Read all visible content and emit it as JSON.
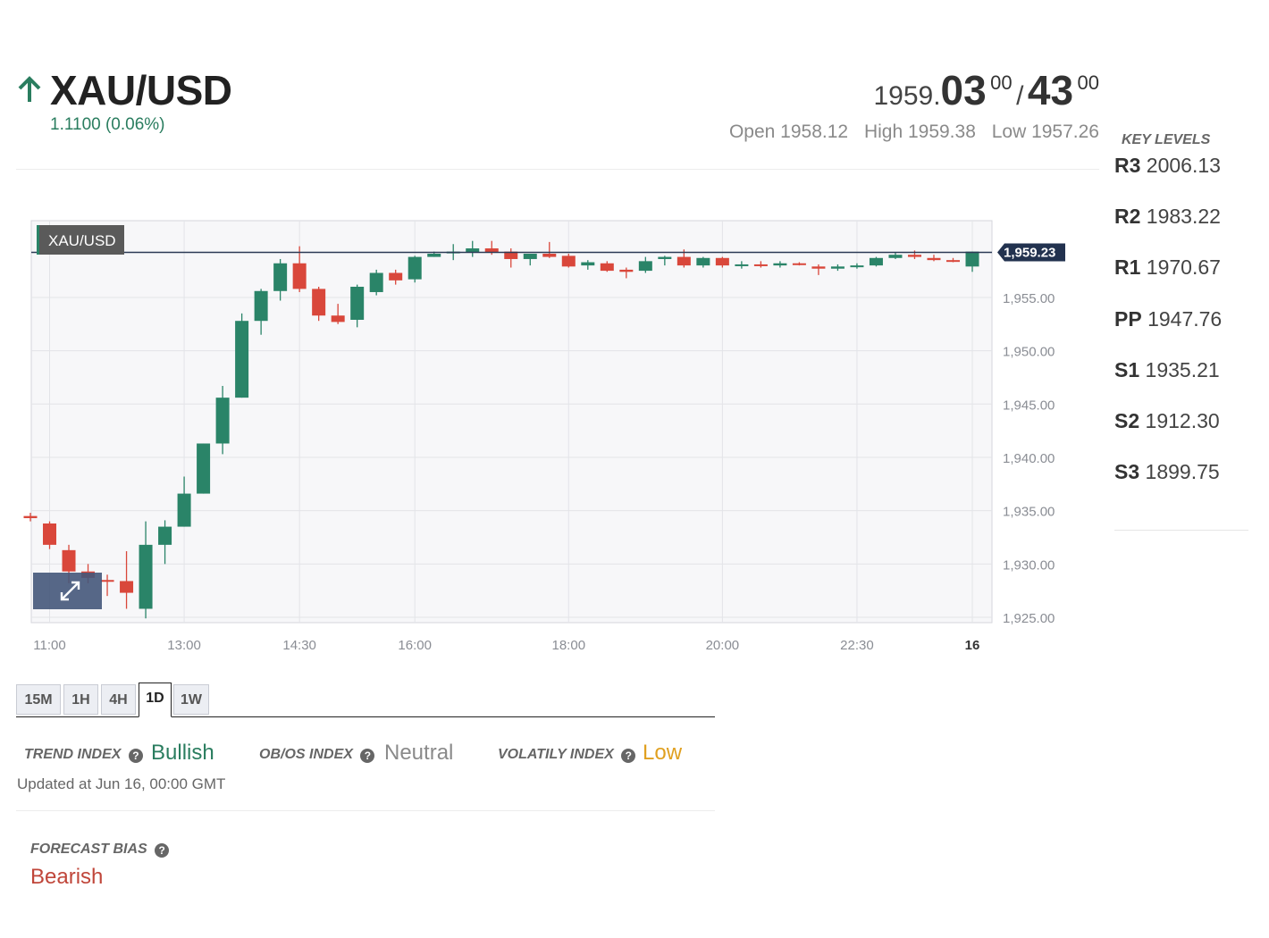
{
  "header": {
    "symbol": "XAU/USD",
    "change": "1.1100 (0.06%)",
    "quote": {
      "bid_main": "1959.",
      "bid_bold": "03",
      "bid_sup": "00",
      "separator": "/",
      "ask_bold": "43",
      "ask_sup": "00"
    },
    "open": "Open 1958.12",
    "high": "High 1959.38",
    "low": "Low 1957.26"
  },
  "key_levels": {
    "title": "KEY LEVELS",
    "items": [
      {
        "name": "R3",
        "value": "2006.13"
      },
      {
        "name": "R2",
        "value": "1983.22"
      },
      {
        "name": "R1",
        "value": "1970.67"
      },
      {
        "name": "PP",
        "value": "1947.76"
      },
      {
        "name": "S1",
        "value": "1935.21"
      },
      {
        "name": "S2",
        "value": "1912.30"
      },
      {
        "name": "S3",
        "value": "1899.75"
      }
    ]
  },
  "chart_data": {
    "type": "candlestick",
    "legend_label": "XAU/USD",
    "last_price_label": "1,959.23",
    "last_price": 1959.23,
    "ylim": [
      1924.5,
      1962.2
    ],
    "y_ticks": [
      1925,
      1930,
      1935,
      1940,
      1945,
      1950,
      1955
    ],
    "y_tick_labels": [
      "1,925.00",
      "1,930.00",
      "1,935.00",
      "1,940.00",
      "1,945.00",
      "1,950.00",
      "1,955.00"
    ],
    "x_tick_labels": [
      "11:00",
      "13:00",
      "14:30",
      "16:00",
      "18:00",
      "20:00",
      "22:30",
      "16"
    ],
    "x_tick_index": [
      1,
      8,
      14,
      20,
      28,
      36,
      43,
      49
    ],
    "candles": [
      {
        "o": 1934.5,
        "h": 1934.8,
        "l": 1934.0,
        "c": 1934.3
      },
      {
        "o": 1933.8,
        "h": 1934.0,
        "l": 1931.4,
        "c": 1931.8
      },
      {
        "o": 1931.3,
        "h": 1931.8,
        "l": 1928.2,
        "c": 1929.3
      },
      {
        "o": 1929.3,
        "h": 1930.0,
        "l": 1928.2,
        "c": 1928.7
      },
      {
        "o": 1928.5,
        "h": 1929.0,
        "l": 1927.0,
        "c": 1928.4
      },
      {
        "o": 1928.4,
        "h": 1931.2,
        "l": 1925.8,
        "c": 1927.3
      },
      {
        "o": 1925.8,
        "h": 1934.0,
        "l": 1924.9,
        "c": 1931.8
      },
      {
        "o": 1931.8,
        "h": 1934.1,
        "l": 1930.0,
        "c": 1933.5
      },
      {
        "o": 1933.5,
        "h": 1938.2,
        "l": 1933.5,
        "c": 1936.6
      },
      {
        "o": 1936.6,
        "h": 1941.3,
        "l": 1936.6,
        "c": 1941.3
      },
      {
        "o": 1941.3,
        "h": 1946.7,
        "l": 1940.3,
        "c": 1945.6
      },
      {
        "o": 1945.6,
        "h": 1953.5,
        "l": 1945.6,
        "c": 1952.8
      },
      {
        "o": 1952.8,
        "h": 1955.8,
        "l": 1951.5,
        "c": 1955.6
      },
      {
        "o": 1955.6,
        "h": 1958.6,
        "l": 1954.7,
        "c": 1958.2
      },
      {
        "o": 1958.2,
        "h": 1959.8,
        "l": 1955.5,
        "c": 1955.8
      },
      {
        "o": 1955.8,
        "h": 1956.0,
        "l": 1952.8,
        "c": 1953.3
      },
      {
        "o": 1953.3,
        "h": 1954.4,
        "l": 1952.5,
        "c": 1952.7
      },
      {
        "o": 1952.9,
        "h": 1956.2,
        "l": 1952.2,
        "c": 1956.0
      },
      {
        "o": 1955.5,
        "h": 1957.6,
        "l": 1955.2,
        "c": 1957.3
      },
      {
        "o": 1957.3,
        "h": 1957.6,
        "l": 1956.2,
        "c": 1956.6
      },
      {
        "o": 1956.7,
        "h": 1958.9,
        "l": 1956.4,
        "c": 1958.8
      },
      {
        "o": 1958.8,
        "h": 1959.3,
        "l": 1958.8,
        "c": 1959.1
      },
      {
        "o": 1959.3,
        "h": 1960.0,
        "l": 1958.5,
        "c": 1959.3
      },
      {
        "o": 1959.2,
        "h": 1960.3,
        "l": 1958.8,
        "c": 1959.6
      },
      {
        "o": 1959.6,
        "h": 1960.3,
        "l": 1959.0,
        "c": 1959.2
      },
      {
        "o": 1959.3,
        "h": 1959.6,
        "l": 1957.8,
        "c": 1958.6
      },
      {
        "o": 1958.6,
        "h": 1959.1,
        "l": 1958.0,
        "c": 1959.1
      },
      {
        "o": 1959.1,
        "h": 1960.2,
        "l": 1958.7,
        "c": 1958.8
      },
      {
        "o": 1958.9,
        "h": 1959.1,
        "l": 1957.8,
        "c": 1957.9
      },
      {
        "o": 1958.0,
        "h": 1958.5,
        "l": 1957.6,
        "c": 1958.3
      },
      {
        "o": 1958.2,
        "h": 1958.4,
        "l": 1957.4,
        "c": 1957.5
      },
      {
        "o": 1957.6,
        "h": 1957.8,
        "l": 1956.8,
        "c": 1957.4
      },
      {
        "o": 1957.5,
        "h": 1958.8,
        "l": 1957.3,
        "c": 1958.4
      },
      {
        "o": 1958.6,
        "h": 1958.9,
        "l": 1958.0,
        "c": 1958.8
      },
      {
        "o": 1958.8,
        "h": 1959.5,
        "l": 1957.8,
        "c": 1958.0
      },
      {
        "o": 1958.0,
        "h": 1958.8,
        "l": 1957.8,
        "c": 1958.7
      },
      {
        "o": 1958.7,
        "h": 1958.8,
        "l": 1957.8,
        "c": 1958.0
      },
      {
        "o": 1958.0,
        "h": 1958.4,
        "l": 1957.7,
        "c": 1958.1
      },
      {
        "o": 1958.1,
        "h": 1958.4,
        "l": 1957.8,
        "c": 1958.0
      },
      {
        "o": 1958.0,
        "h": 1958.4,
        "l": 1957.8,
        "c": 1958.2
      },
      {
        "o": 1958.2,
        "h": 1958.3,
        "l": 1958.0,
        "c": 1958.1
      },
      {
        "o": 1957.9,
        "h": 1958.1,
        "l": 1957.1,
        "c": 1957.7
      },
      {
        "o": 1957.7,
        "h": 1958.1,
        "l": 1957.5,
        "c": 1957.9
      },
      {
        "o": 1957.9,
        "h": 1958.2,
        "l": 1957.7,
        "c": 1958.0
      },
      {
        "o": 1958.0,
        "h": 1958.8,
        "l": 1957.9,
        "c": 1958.7
      },
      {
        "o": 1958.7,
        "h": 1959.2,
        "l": 1958.6,
        "c": 1959.0
      },
      {
        "o": 1959.0,
        "h": 1959.4,
        "l": 1958.6,
        "c": 1958.8
      },
      {
        "o": 1958.7,
        "h": 1959.0,
        "l": 1958.4,
        "c": 1958.5
      },
      {
        "o": 1958.5,
        "h": 1958.7,
        "l": 1958.3,
        "c": 1958.4
      },
      {
        "o": 1957.9,
        "h": 1959.3,
        "l": 1957.4,
        "c": 1959.3
      }
    ],
    "colors": {
      "up": "#2a8468",
      "down": "#d9473b",
      "flat": "#333333"
    }
  },
  "timeframes": {
    "items": [
      "15M",
      "1H",
      "4H",
      "1D",
      "1W"
    ],
    "active": "1D"
  },
  "indices": {
    "trend_label": "TREND INDEX",
    "trend_value": "Bullish",
    "obos_label": "OB/OS INDEX",
    "obos_value": "Neutral",
    "volatility_label": "VOLATILY INDEX",
    "volatility_value": "Low",
    "help_glyph": "?",
    "updated": "Updated at Jun 16, 00:00 GMT",
    "colors": {
      "bullish": "#2a7d5f",
      "neutral": "#8a8a8a",
      "low": "#e0a020"
    }
  },
  "forecast": {
    "label": "FORECAST BIAS",
    "value": "Bearish",
    "color": "#c0463a"
  },
  "icons": {
    "arrow": "arrow-up-icon",
    "help": "question-circle-icon",
    "expand": "expand-arrows-icon"
  }
}
